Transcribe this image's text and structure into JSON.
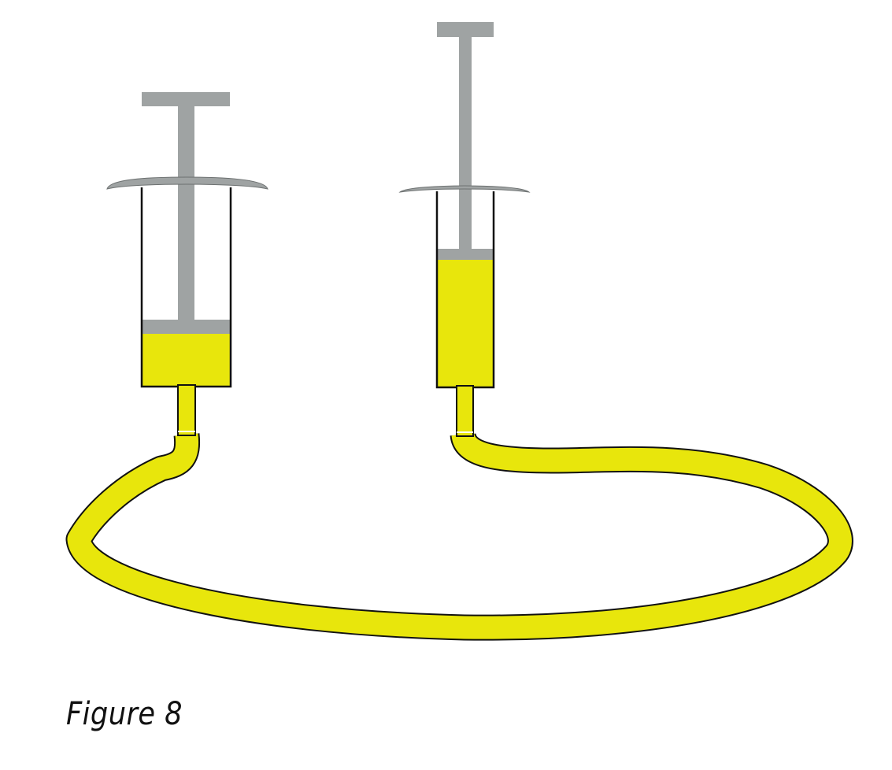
{
  "figure": {
    "caption": "Figure 8"
  },
  "colors": {
    "fluid": "#e8e60c",
    "plunger": "#9fa3a3",
    "outline": "#111111",
    "background": "#ffffff"
  },
  "syringes": [
    {
      "name": "left-syringe",
      "fill_fraction": 0.27
    },
    {
      "name": "right-syringe",
      "fill_fraction": 0.69
    }
  ]
}
